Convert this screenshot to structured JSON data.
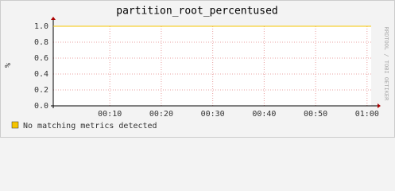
{
  "chart_data": {
    "type": "line",
    "title": "partition_root_percentused",
    "ylabel": "%",
    "watermark": "RRDTOOL / TOBI OETIKER",
    "x": [
      -1,
      60.8
    ],
    "series": [
      {
        "name": "No matching metrics detected",
        "color": "#f5c400",
        "values": [
          1,
          1
        ]
      }
    ],
    "xlim": [
      -1,
      60.8
    ],
    "xticks": [
      {
        "value": 10,
        "label": "00:10"
      },
      {
        "value": 20,
        "label": "00:20"
      },
      {
        "value": 30,
        "label": "00:30"
      },
      {
        "value": 40,
        "label": "00:40"
      },
      {
        "value": 50,
        "label": "00:50"
      },
      {
        "value": 60,
        "label": "01:00"
      }
    ],
    "ylim": [
      0,
      1
    ],
    "yticks": [
      {
        "value": 0,
        "label": "0.0"
      },
      {
        "value": 0.2,
        "label": "0.2"
      },
      {
        "value": 0.4,
        "label": "0.4"
      },
      {
        "value": 0.6,
        "label": "0.6"
      },
      {
        "value": 0.8,
        "label": "0.8"
      },
      {
        "value": 1,
        "label": "1.0"
      }
    ],
    "grid": true
  }
}
